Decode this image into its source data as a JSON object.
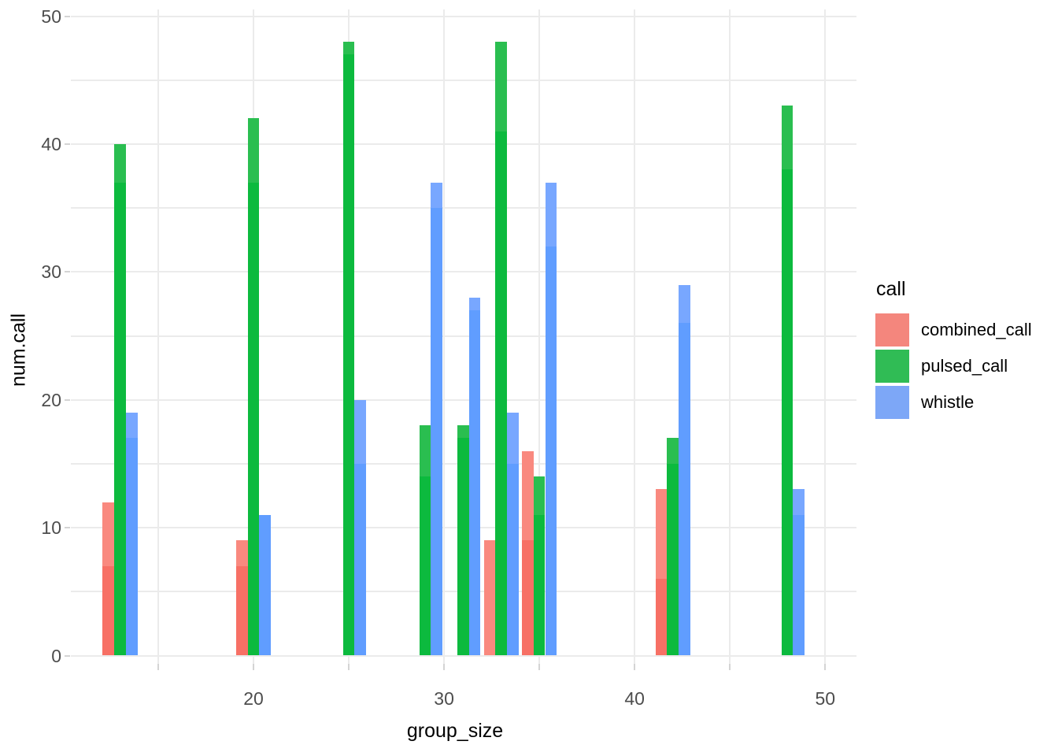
{
  "chart_data": {
    "type": "bar",
    "title": "",
    "xlabel": "group_size",
    "ylabel": "num.call",
    "xlim": [
      10.4,
      51.7
    ],
    "ylim": [
      0,
      50
    ],
    "grid": "on",
    "x_gridline_positions": [
      15,
      20,
      25,
      30,
      35,
      40,
      45,
      50
    ],
    "x_tick_positions": [
      15,
      20,
      25,
      30,
      35,
      40,
      45,
      50
    ],
    "x_tick_labels": [
      20,
      30,
      40,
      50
    ],
    "y_gridline_positions": [
      0,
      5,
      10,
      15,
      20,
      25,
      30,
      35,
      40,
      45,
      50
    ],
    "y_tick_labels": [
      0,
      10,
      20,
      30,
      40,
      50
    ],
    "groups": [
      13,
      20,
      25,
      29,
      31,
      33,
      35,
      42,
      48
    ],
    "bar_note": "values = [visible_top, overlap_top]; lighter shade from visible_top down to overlap_top, darker overlap shade below (two semi-transparent observations)",
    "series": [
      {
        "name": "combined_call",
        "color_light": "#f9897f",
        "color_dark": "#f77065",
        "bars": [
          {
            "group_size": 13,
            "values": [
              12,
              7
            ]
          },
          {
            "group_size": 20,
            "values": [
              9,
              7
            ]
          },
          {
            "group_size": 33,
            "values": [
              9
            ]
          },
          {
            "group_size": 35,
            "values": [
              16,
              9
            ]
          },
          {
            "group_size": 42,
            "values": [
              13,
              6
            ]
          }
        ]
      },
      {
        "name": "pulsed_call",
        "color_light": "#2abe50",
        "color_dark": "#0cba3e",
        "bars": [
          {
            "group_size": 13,
            "values": [
              40,
              37
            ]
          },
          {
            "group_size": 20,
            "values": [
              42,
              37
            ]
          },
          {
            "group_size": 25,
            "values": [
              48,
              47
            ]
          },
          {
            "group_size": 29,
            "values": [
              18,
              14
            ]
          },
          {
            "group_size": 31,
            "values": [
              18,
              17
            ]
          },
          {
            "group_size": 33,
            "values": [
              48,
              41
            ]
          },
          {
            "group_size": 35,
            "values": [
              14,
              11
            ]
          },
          {
            "group_size": 42,
            "values": [
              17,
              15
            ]
          },
          {
            "group_size": 48,
            "values": [
              43,
              38
            ]
          }
        ]
      },
      {
        "name": "whistle",
        "color_light": "#78a7ff",
        "color_dark": "#609dff",
        "bars": [
          {
            "group_size": 13,
            "values": [
              19,
              17
            ]
          },
          {
            "group_size": 20,
            "values": [
              11,
              11
            ]
          },
          {
            "group_size": 25,
            "values": [
              20,
              15
            ]
          },
          {
            "group_size": 29,
            "values": [
              37,
              35
            ]
          },
          {
            "group_size": 31,
            "values": [
              28,
              27
            ]
          },
          {
            "group_size": 33,
            "values": [
              19,
              15
            ]
          },
          {
            "group_size": 35,
            "values": [
              37,
              32
            ]
          },
          {
            "group_size": 42,
            "values": [
              29,
              26
            ]
          },
          {
            "group_size": 48,
            "values": [
              13,
              11
            ]
          }
        ]
      }
    ],
    "legend": {
      "title": "call",
      "position": "right",
      "entries": [
        {
          "label": "combined_call",
          "color": "#f4867d"
        },
        {
          "label": "pulsed_call",
          "color": "#30bc55"
        },
        {
          "label": "whistle",
          "color": "#7da7f7"
        }
      ]
    },
    "colors": {
      "gridline": "#ebebeb",
      "tick_mark": "#d4d4d4",
      "tick_text": "#4d4d4d",
      "axis_title_text": "#000000",
      "background": "#ffffff"
    }
  }
}
